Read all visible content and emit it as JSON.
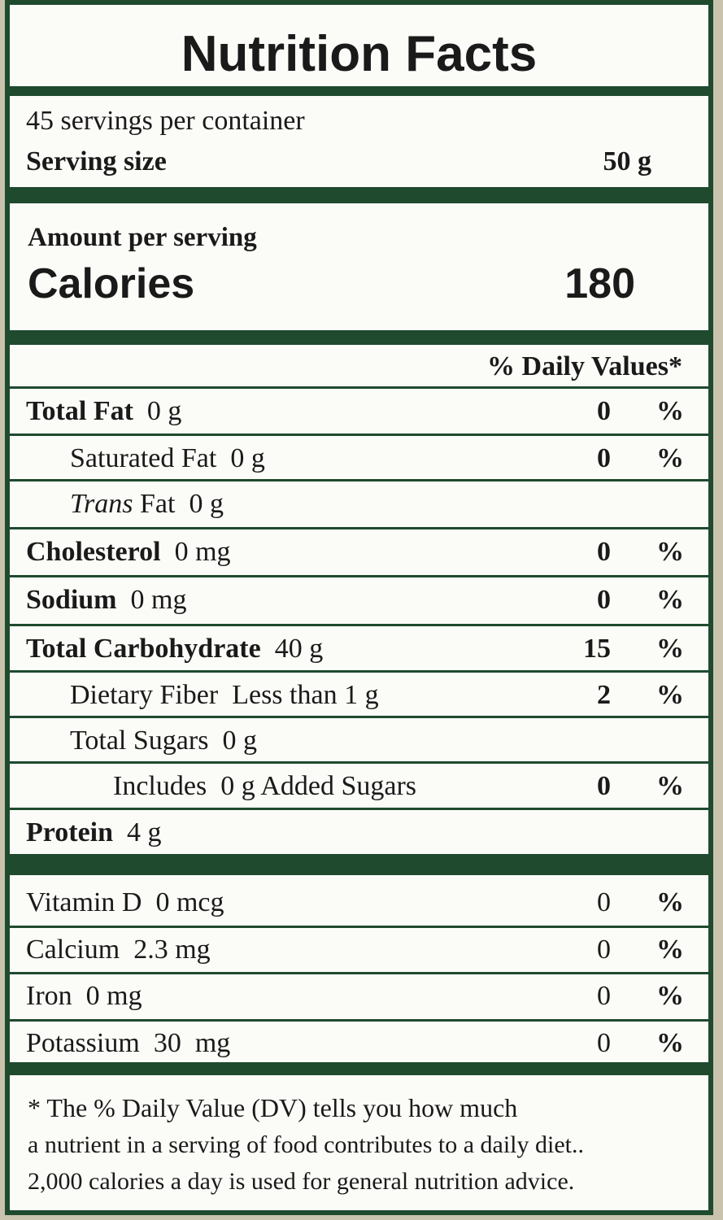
{
  "title": "Nutrition Facts",
  "servings": {
    "per_container": "45 servings per container",
    "size_label": "Serving size",
    "size_value": "50 g"
  },
  "calories": {
    "header": "Amount per serving",
    "label": "Calories",
    "value": 180
  },
  "daily_values_header": "% Daily Values*",
  "nutrients": [
    {
      "name": "Total Fat",
      "amount": "0 g",
      "dv": 0,
      "unit": "%"
    },
    {
      "name": "Saturated Fat",
      "amount": "0 g",
      "dv": 0,
      "unit": "%"
    },
    {
      "name_italic": "Trans",
      "name": "Fat",
      "amount": "0 g"
    },
    {
      "name": "Cholesterol",
      "amount": "0 mg",
      "dv": 0,
      "unit": "%"
    },
    {
      "name": "Sodium",
      "amount": "0 mg",
      "dv": 0,
      "unit": "%"
    },
    {
      "name": "Total Carbohydrate",
      "amount": "40 g",
      "dv": 15,
      "unit": "%"
    },
    {
      "name": "Dietary Fiber",
      "amount": "Less than 1 g",
      "dv": 2,
      "unit": "%"
    },
    {
      "name": "Total Sugars",
      "amount": "0 g"
    },
    {
      "name": "Includes",
      "amount": "0 g Added Sugars",
      "dv": 0,
      "unit": "%"
    },
    {
      "name": "Protein",
      "amount": "4 g"
    }
  ],
  "vitamins": [
    {
      "name": "Vitamin D",
      "amount": "0 mcg",
      "dv": 0,
      "unit": "%"
    },
    {
      "name": "Calcium",
      "amount": "2.3 mg",
      "dv": 0,
      "unit": "%"
    },
    {
      "name": "Iron",
      "amount": "0 mg",
      "dv": 0,
      "unit": "%"
    },
    {
      "name": "Potassium",
      "amount": "30  mg",
      "dv": 0,
      "unit": "%"
    }
  ],
  "footnote": [
    "* The % Daily Value (DV) tells you how much",
    "a nutrient in a serving of food contributes to a daily diet..",
    "2,000 calories a day is used for general nutrition advice."
  ]
}
